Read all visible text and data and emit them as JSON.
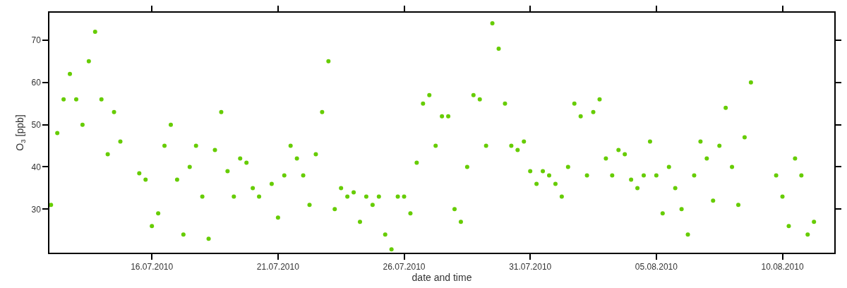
{
  "chart_data": {
    "type": "scatter",
    "xlabel": "date and time",
    "ylabel": "O$_{3}$ [ppb]",
    "x": [
      "2010-07-12T00:00",
      "2010-07-12T06:00",
      "2010-07-12T12:00",
      "2010-07-12T18:00",
      "2010-07-13T00:00",
      "2010-07-13T06:00",
      "2010-07-13T12:00",
      "2010-07-13T18:00",
      "2010-07-14T00:00",
      "2010-07-14T06:00",
      "2010-07-14T12:00",
      "2010-07-14T18:00",
      "2010-07-15T00:00",
      "2010-07-15T06:00",
      "2010-07-15T12:00",
      "2010-07-15T18:00",
      "2010-07-16T00:00",
      "2010-07-16T06:00",
      "2010-07-16T12:00",
      "2010-07-16T18:00",
      "2010-07-17T00:00",
      "2010-07-17T06:00",
      "2010-07-17T12:00",
      "2010-07-17T18:00",
      "2010-07-18T00:00",
      "2010-07-18T06:00",
      "2010-07-18T12:00",
      "2010-07-18T18:00",
      "2010-07-19T00:00",
      "2010-07-19T06:00",
      "2010-07-19T12:00",
      "2010-07-19T18:00",
      "2010-07-20T00:00",
      "2010-07-20T06:00",
      "2010-07-20T12:00",
      "2010-07-20T18:00",
      "2010-07-21T00:00",
      "2010-07-21T06:00",
      "2010-07-21T12:00",
      "2010-07-21T18:00",
      "2010-07-22T00:00",
      "2010-07-22T06:00",
      "2010-07-22T12:00",
      "2010-07-22T18:00",
      "2010-07-23T00:00",
      "2010-07-23T06:00",
      "2010-07-23T12:00",
      "2010-07-23T18:00",
      "2010-07-24T00:00",
      "2010-07-24T06:00",
      "2010-07-24T12:00",
      "2010-07-24T18:00",
      "2010-07-25T00:00",
      "2010-07-25T06:00",
      "2010-07-25T12:00",
      "2010-07-25T18:00",
      "2010-07-26T00:00",
      "2010-07-26T06:00",
      "2010-07-26T12:00",
      "2010-07-26T18:00",
      "2010-07-27T00:00",
      "2010-07-27T06:00",
      "2010-07-27T12:00",
      "2010-07-27T18:00",
      "2010-07-28T00:00",
      "2010-07-28T06:00",
      "2010-07-28T12:00",
      "2010-07-28T18:00",
      "2010-07-29T00:00",
      "2010-07-29T06:00",
      "2010-07-29T12:00",
      "2010-07-29T18:00",
      "2010-07-30T00:00",
      "2010-07-30T06:00",
      "2010-07-30T12:00",
      "2010-07-30T18:00",
      "2010-07-31T00:00",
      "2010-07-31T06:00",
      "2010-07-31T12:00",
      "2010-07-31T18:00",
      "2010-08-01T00:00",
      "2010-08-01T06:00",
      "2010-08-01T12:00",
      "2010-08-01T18:00",
      "2010-08-02T00:00",
      "2010-08-02T06:00",
      "2010-08-02T12:00",
      "2010-08-02T18:00",
      "2010-08-03T00:00",
      "2010-08-03T06:00",
      "2010-08-03T12:00",
      "2010-08-03T18:00",
      "2010-08-04T00:00",
      "2010-08-04T06:00",
      "2010-08-04T12:00",
      "2010-08-04T18:00",
      "2010-08-05T00:00",
      "2010-08-05T06:00",
      "2010-08-05T12:00",
      "2010-08-05T18:00",
      "2010-08-06T00:00",
      "2010-08-06T06:00",
      "2010-08-06T12:00",
      "2010-08-06T18:00",
      "2010-08-07T00:00",
      "2010-08-07T06:00",
      "2010-08-07T12:00",
      "2010-08-07T18:00",
      "2010-08-08T00:00",
      "2010-08-08T06:00",
      "2010-08-08T12:00",
      "2010-08-08T18:00",
      "2010-08-09T00:00",
      "2010-08-09T06:00",
      "2010-08-09T12:00",
      "2010-08-09T18:00",
      "2010-08-10T00:00",
      "2010-08-10T06:00",
      "2010-08-10T12:00",
      "2010-08-10T18:00",
      "2010-08-11T00:00",
      "2010-08-11T06:00"
    ],
    "series": [
      {
        "color": "#66cc00",
        "values": [
          31,
          48,
          56,
          62,
          56,
          50,
          65,
          72,
          56,
          43,
          53,
          46,
          null,
          null,
          38.5,
          37,
          26,
          29,
          45,
          50,
          37,
          24,
          40,
          45,
          33,
          23,
          44,
          53,
          39,
          33,
          42,
          41,
          35,
          33,
          null,
          36,
          28,
          38,
          45,
          42,
          38,
          31,
          43,
          53,
          65,
          30,
          35,
          33,
          34,
          27,
          33,
          31,
          33,
          24,
          20.5,
          33,
          33,
          29,
          41,
          55,
          57,
          45,
          52,
          52,
          30,
          27,
          40,
          57,
          56,
          45,
          74,
          68,
          55,
          45,
          44,
          46,
          39,
          36,
          39,
          38,
          36,
          33,
          40,
          55,
          52,
          38,
          53,
          56,
          42,
          38,
          44,
          43,
          37,
          35,
          38,
          46,
          38,
          29,
          40,
          35,
          30,
          24,
          38,
          46,
          42,
          32,
          45,
          54,
          40,
          31,
          47,
          60,
          null,
          null,
          null,
          38,
          33,
          26,
          42,
          38,
          24,
          27
        ]
      }
    ],
    "marker": "circle",
    "xlim": [
      "2010-07-11T22:30",
      "2010-08-12T01:20"
    ],
    "xticks": [
      {
        "value": "2010-07-16",
        "label": "16.07.2010"
      },
      {
        "value": "2010-07-21",
        "label": "21.07.2010"
      },
      {
        "value": "2010-07-26",
        "label": "26.07.2010"
      },
      {
        "value": "2010-07-31",
        "label": "31.07.2010"
      },
      {
        "value": "2010-08-05",
        "label": "05.08.2010"
      },
      {
        "value": "2010-08-10",
        "label": "10.08.2010"
      }
    ],
    "ylim": [
      19.7,
      76.5
    ],
    "yticks": [
      30,
      40,
      50,
      60,
      70
    ]
  }
}
